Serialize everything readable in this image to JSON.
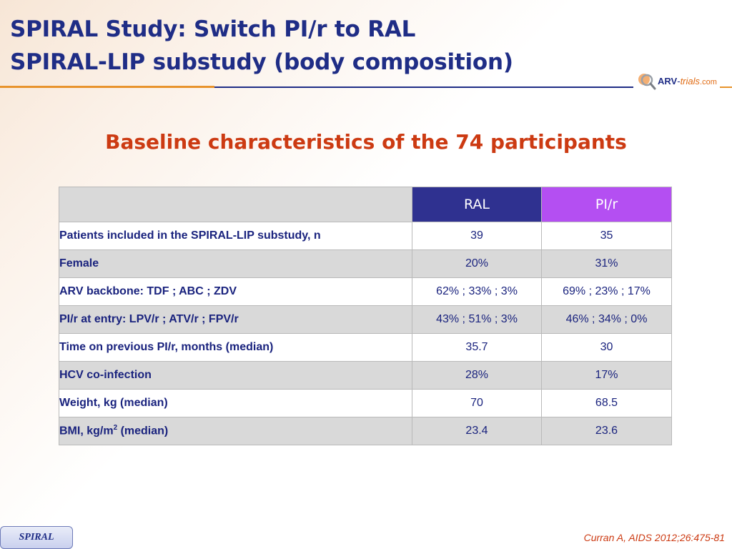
{
  "header": {
    "title_line1": "SPIRAL Study: Switch PI/r to RAL",
    "title_line2": "SPIRAL-LIP substudy (body composition)",
    "logo": {
      "arv": "ARV",
      "dash": "-",
      "trials": "trials",
      "com": ".com"
    }
  },
  "subtitle": "Baseline characteristics of the 74 participants",
  "table": {
    "columns": [
      "",
      "RAL",
      "PI/r"
    ],
    "rows": [
      {
        "label": "Patients included in the SPIRAL-LIP substudy, n",
        "ral": "39",
        "pir": "35"
      },
      {
        "label": "Female",
        "ral": "20%",
        "pir": "31%"
      },
      {
        "label": "ARV backbone: TDF ; ABC ; ZDV",
        "ral": "62% ; 33% ; 3%",
        "pir": "69% ; 23% ; 17%"
      },
      {
        "label": "PI/r at entry: LPV/r ; ATV/r ; FPV/r",
        "ral": "43% ; 51% ; 3%",
        "pir": "46% ; 34% ; 0%"
      },
      {
        "label": "Time on previous PI/r, months (median)",
        "ral": "35.7",
        "pir": "30"
      },
      {
        "label": "HCV co-infection",
        "ral": "28%",
        "pir": "17%"
      },
      {
        "label": "Weight, kg (median)",
        "ral": "70",
        "pir": "68.5"
      },
      {
        "label_prefix": "BMI, kg/m",
        "label_sup": "2",
        "label_suffix": " (median)",
        "ral": "23.4",
        "pir": "23.6"
      }
    ]
  },
  "footer": {
    "badge": "SPIRAL",
    "citation": "Curran A, AIDS 2012;26:475-81"
  },
  "colors": {
    "title": "#1f2d86",
    "subtitle": "#cc3a12",
    "ral_header": "#2f3190",
    "pir_header": "#b44ff2",
    "row_shade": "#d9d9d9"
  }
}
